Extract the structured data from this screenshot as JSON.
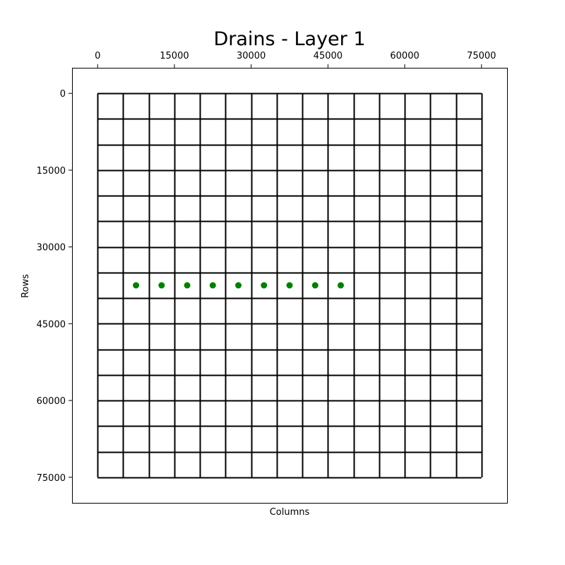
{
  "chart_data": {
    "type": "scatter",
    "title": "Drains - Layer 1",
    "xlabel": "Columns",
    "ylabel": "Rows",
    "xlim": [
      -5000,
      80000
    ],
    "ylim": [
      80000,
      -5000
    ],
    "x_axis_position": "top",
    "y_axis_inverted": true,
    "xticks": [
      0,
      15000,
      30000,
      45000,
      60000,
      75000
    ],
    "yticks": [
      0,
      15000,
      30000,
      45000,
      60000,
      75000
    ],
    "xtick_labels": [
      "0",
      "15000",
      "30000",
      "45000",
      "60000",
      "75000"
    ],
    "ytick_labels": [
      "0",
      "15000",
      "30000",
      "45000",
      "60000",
      "75000"
    ],
    "grid": {
      "cell_size": 5000,
      "ncol": 15,
      "nrow": 15,
      "extent": [
        0,
        75000,
        0,
        75000
      ],
      "line_color": "#000000"
    },
    "series": [
      {
        "marker_color": "#008000",
        "x": [
          7500,
          12500,
          17500,
          22500,
          27500,
          32500,
          37500,
          42500,
          47500
        ],
        "y": [
          37500,
          37500,
          37500,
          37500,
          37500,
          37500,
          37500,
          37500,
          37500
        ]
      }
    ]
  }
}
